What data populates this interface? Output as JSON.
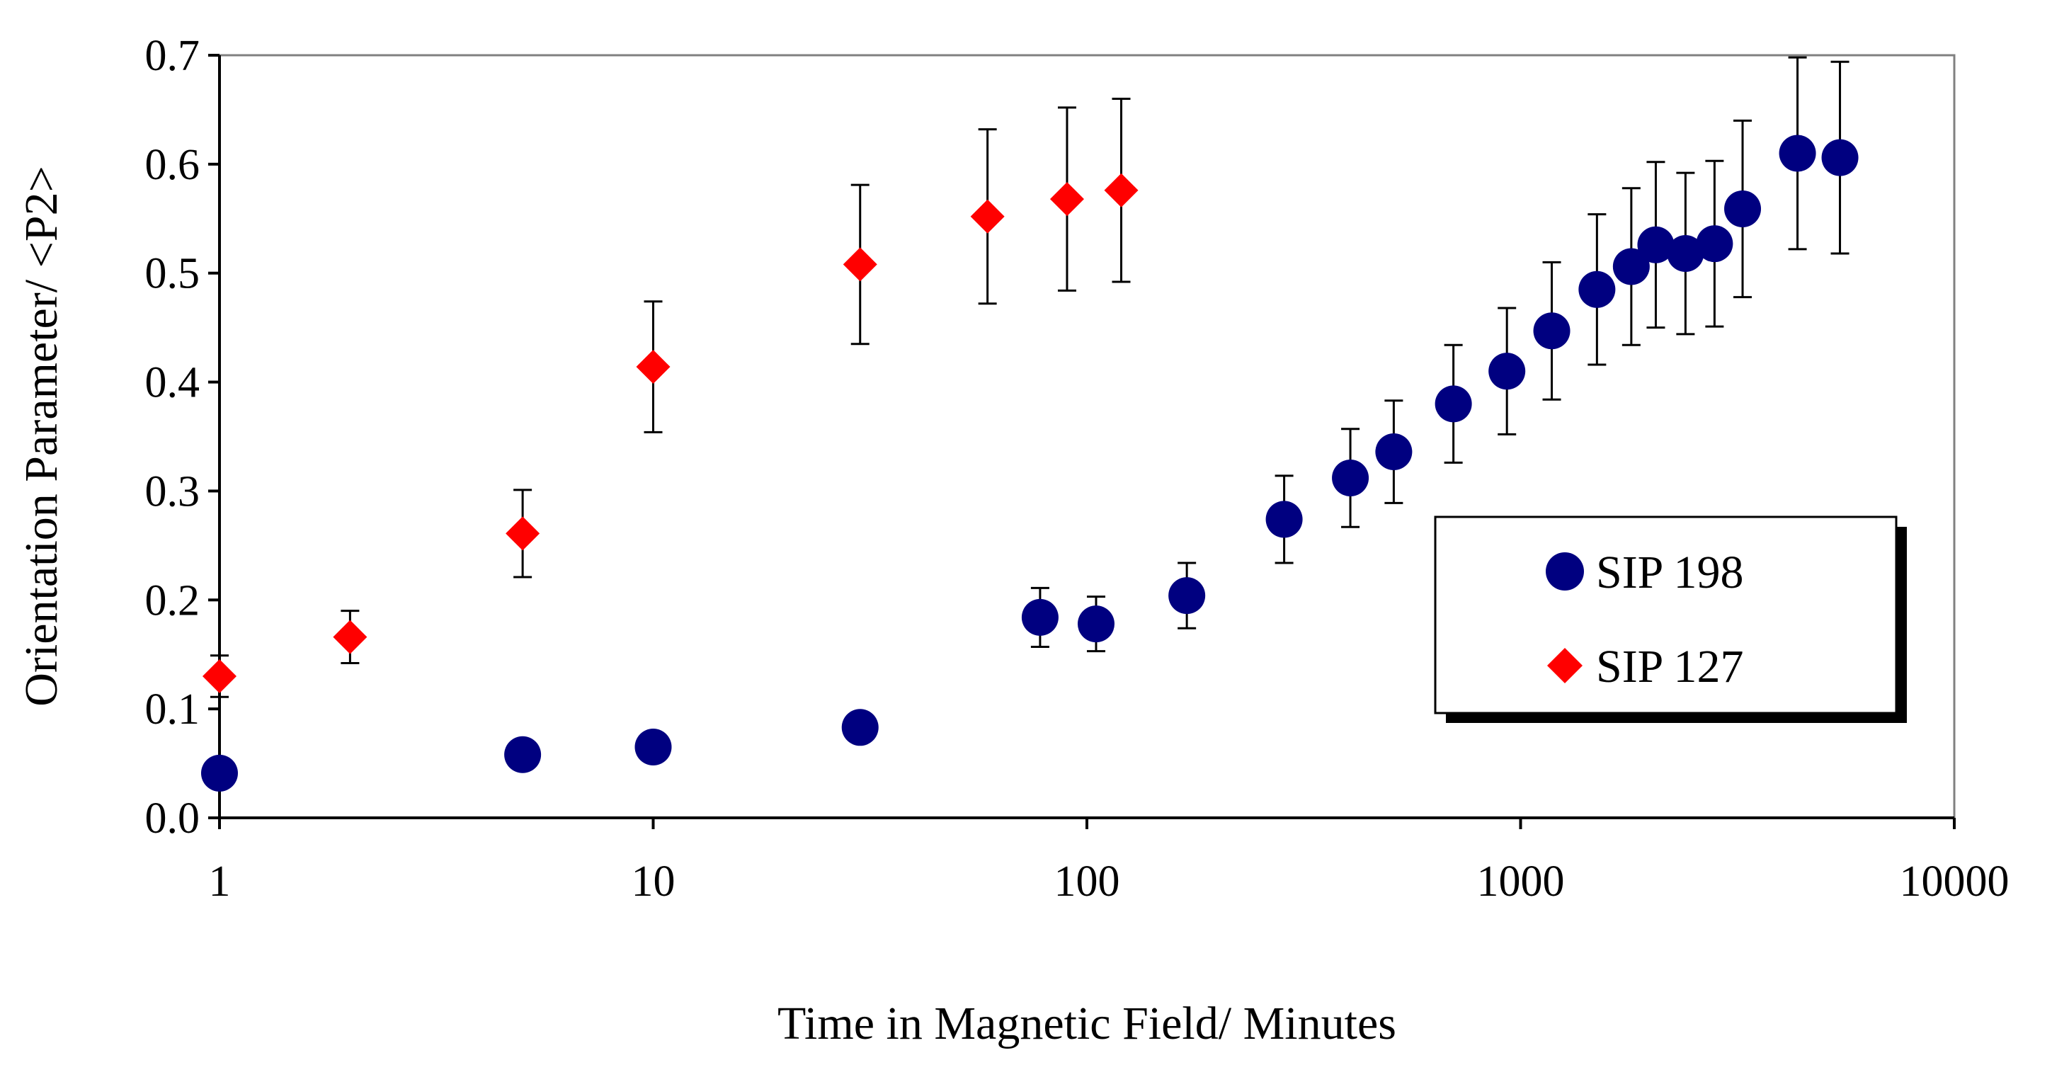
{
  "chart_data": {
    "type": "scatter",
    "xscale": "log",
    "xlim": [
      1,
      10000
    ],
    "ylim": [
      0,
      0.7
    ],
    "xlabel": "Time in Magnetic Field/ Minutes",
    "ylabel": "Orientation Parameter/ <P2>",
    "xticks": [
      1,
      10,
      100,
      1000,
      10000
    ],
    "xtick_labels": [
      "1",
      "10",
      "100",
      "1000",
      "10000"
    ],
    "yticks": [
      0,
      0.1,
      0.2,
      0.3,
      0.4,
      0.5,
      0.6,
      0.7
    ],
    "ytick_labels": [
      "0.0",
      "0.1",
      "0.2",
      "0.3",
      "0.4",
      "0.5",
      "0.6",
      "0.7"
    ],
    "grid": false,
    "legend_position": "right",
    "series": [
      {
        "name": "SIP 198",
        "marker": "circle",
        "color": "#000080",
        "points": [
          {
            "x": 1,
            "y": 0.041
          },
          {
            "x": 5,
            "y": 0.058
          },
          {
            "x": 10,
            "y": 0.065
          },
          {
            "x": 30,
            "y": 0.083
          },
          {
            "x": 78,
            "y": 0.184,
            "err": 0.027
          },
          {
            "x": 105,
            "y": 0.178,
            "err": 0.025
          },
          {
            "x": 170,
            "y": 0.204,
            "err": 0.03
          },
          {
            "x": 285,
            "y": 0.274,
            "err": 0.04
          },
          {
            "x": 405,
            "y": 0.312,
            "err": 0.045
          },
          {
            "x": 510,
            "y": 0.336,
            "err": 0.047
          },
          {
            "x": 700,
            "y": 0.38,
            "err": 0.054
          },
          {
            "x": 930,
            "y": 0.41,
            "err": 0.058
          },
          {
            "x": 1180,
            "y": 0.447,
            "err": 0.063
          },
          {
            "x": 1500,
            "y": 0.485,
            "err": 0.069
          },
          {
            "x": 1800,
            "y": 0.506,
            "err": 0.072
          },
          {
            "x": 2050,
            "y": 0.526,
            "err": 0.076
          },
          {
            "x": 2400,
            "y": 0.518,
            "err": 0.074
          },
          {
            "x": 2800,
            "y": 0.527,
            "err": 0.076
          },
          {
            "x": 3250,
            "y": 0.559,
            "err": 0.081
          },
          {
            "x": 4350,
            "y": 0.61,
            "err": 0.088
          },
          {
            "x": 5450,
            "y": 0.606,
            "err": 0.088
          }
        ]
      },
      {
        "name": "SIP 127",
        "marker": "diamond",
        "color": "#ff0000",
        "points": [
          {
            "x": 1,
            "y": 0.13,
            "err": 0.019
          },
          {
            "x": 2,
            "y": 0.166,
            "err": 0.024
          },
          {
            "x": 5,
            "y": 0.261,
            "err": 0.04
          },
          {
            "x": 10,
            "y": 0.414,
            "err": 0.06
          },
          {
            "x": 30,
            "y": 0.508,
            "err": 0.073
          },
          {
            "x": 59,
            "y": 0.552,
            "err": 0.08
          },
          {
            "x": 90,
            "y": 0.568,
            "err": 0.084
          },
          {
            "x": 120,
            "y": 0.576,
            "err": 0.084
          }
        ]
      }
    ]
  }
}
